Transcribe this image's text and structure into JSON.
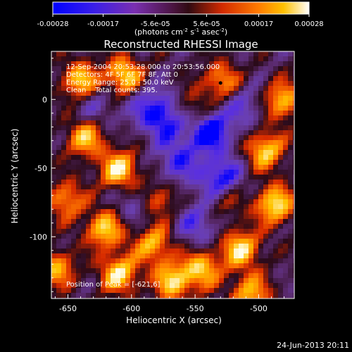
{
  "colorbar": {
    "ticks": [
      {
        "label": "-0.00028",
        "value": -0.00028
      },
      {
        "label": "-0.00017",
        "value": -0.00017
      },
      {
        "label": "-5.6e-05",
        "value": -5.6e-05
      },
      {
        "label": "5.6e-05",
        "value": 5.6e-05
      },
      {
        "label": "0.00017",
        "value": 0.00017
      },
      {
        "label": "0.00028",
        "value": 0.00028
      }
    ],
    "range": [
      -0.00028,
      0.00028
    ],
    "unit_html": "(photons cm<tspan baseline-shift='super' font-size='7'>-2</tspan> s<tspan baseline-shift='super' font-size='7'>-1</tspan> asec<tspan baseline-shift='super' font-size='7'>-2</tspan>)"
  },
  "annotations": {
    "time_range": "12-Sep-2004 20:53:28.000 to 20:53:56.000",
    "detectors": "Detectors: 4F 5F 6F 7F 8F, Att 0",
    "energy": "Energy Range: 25.0 - 50.0 keV",
    "clean": "Clean    Total counts: 395.",
    "peak": "Position of Peak = [-621,6]"
  },
  "footer": {
    "timestamp": "24-Jun-2013 20:11"
  },
  "chart_data": {
    "type": "heatmap",
    "title": "Reconstructed RHESSI Image",
    "xlabel": "Heliocentric X (arcsec)",
    "ylabel": "Heliocentric Y (arcsec)",
    "xlim": [
      -663,
      -472
    ],
    "ylim": [
      -145,
      35
    ],
    "xticks": [
      -650,
      -600,
      -550,
      -500
    ],
    "yticks": [
      0,
      -50,
      -100
    ],
    "marker": {
      "x": -530,
      "y": 12
    },
    "colors": {
      "axis": "#ffffff",
      "background": "#000000",
      "colormap": [
        "#0000ff",
        "#5a2fe0",
        "#6a3fb0",
        "#5a2a6e",
        "#2a0a18",
        "#d62a00",
        "#ff7a00",
        "#ffc400",
        "#fffdea"
      ]
    }
  }
}
